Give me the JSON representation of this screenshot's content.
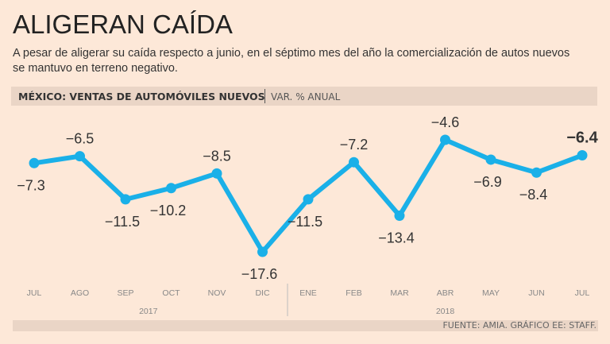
{
  "title": "ALIGERAN CAÍDA",
  "subtitle": "A pesar de aligerar su caída respecto a junio, en el séptimo mes del año la comercialización de autos nuevos se mantuvo en terreno negativo.",
  "header": {
    "chart_title": "MÉXICO: VENTAS DE AUTOMÓVILES NUEVOS",
    "units": "VAR. % ANUAL"
  },
  "source": "FUENTE: AMIA. GRÁFICO EE: STAFF.",
  "line_color": "#1ab0e8",
  "chart_data": {
    "type": "line",
    "title": "MÉXICO: VENTAS DE AUTOMÓVILES NUEVOS",
    "ylabel": "VAR. % ANUAL",
    "categories": [
      "JUL",
      "AGO",
      "SEP",
      "OCT",
      "NOV",
      "DIC",
      "ENE",
      "FEB",
      "MAR",
      "ABR",
      "MAY",
      "JUN",
      "JUL"
    ],
    "years": [
      {
        "label": "2017",
        "from": 0,
        "to": 5
      },
      {
        "label": "2018",
        "from": 6,
        "to": 12
      }
    ],
    "values": [
      -7.3,
      -6.5,
      -11.5,
      -10.2,
      -8.5,
      -17.6,
      -11.5,
      -7.2,
      -13.4,
      -4.6,
      -6.9,
      -8.4,
      -6.4
    ],
    "labels": [
      "−7.3",
      "−6.5",
      "−11.5",
      "−10.2",
      "−8.5",
      "−17.6",
      "−11.5",
      "−7.2",
      "−13.4",
      "−4.6",
      "−6.9",
      "−8.4",
      "−6.4"
    ],
    "label_pos": [
      "below",
      "above",
      "below",
      "below",
      "above",
      "below",
      "below",
      "above",
      "below",
      "above",
      "below",
      "below",
      "above"
    ],
    "grid": false
  }
}
